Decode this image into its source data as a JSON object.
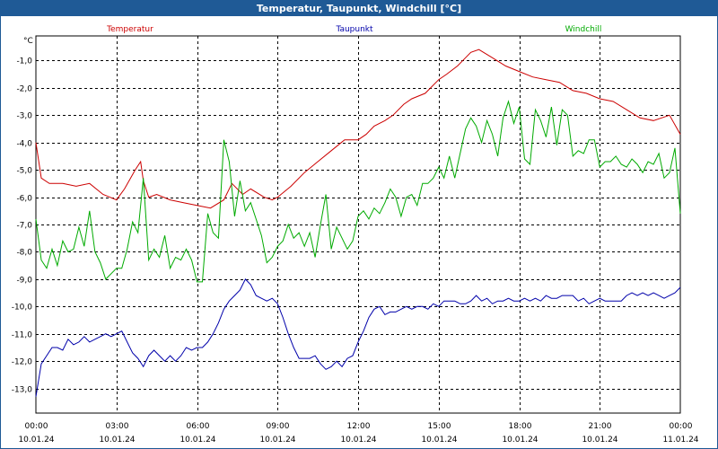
{
  "window": {
    "title": "Temperatur, Taupunkt, Windchill [°C]"
  },
  "chart_data": {
    "type": "line",
    "title": "Temperatur, Taupunkt, Windchill [°C]",
    "ylabel": "°C",
    "xlabel": "",
    "ylim": [
      -13.9,
      -0.1
    ],
    "xlim": [
      0,
      24
    ],
    "grid": true,
    "y_ticks": [
      "-1,0",
      "-2,0",
      "-3,0",
      "-4,0",
      "-5,0",
      "-6,0",
      "-7,0",
      "-8,0",
      "-9,0",
      "-10,0",
      "-11,0",
      "-12,0",
      "-13,0"
    ],
    "y_tick_values": [
      -1,
      -2,
      -3,
      -4,
      -5,
      -6,
      -7,
      -8,
      -9,
      -10,
      -11,
      -12,
      -13
    ],
    "x_ticks": [
      {
        "time": "00:00",
        "date": "10.01.24"
      },
      {
        "time": "03:00",
        "date": "10.01.24"
      },
      {
        "time": "06:00",
        "date": "10.01.24"
      },
      {
        "time": "09:00",
        "date": "10.01.24"
      },
      {
        "time": "12:00",
        "date": "10.01.24"
      },
      {
        "time": "15:00",
        "date": "10.01.24"
      },
      {
        "time": "18:00",
        "date": "10.01.24"
      },
      {
        "time": "21:00",
        "date": "10.01.24"
      },
      {
        "time": "00:00",
        "date": "11.01.24"
      }
    ],
    "x_tick_values": [
      0,
      3,
      6,
      9,
      12,
      15,
      18,
      21,
      24
    ],
    "series": [
      {
        "name": "Temperatur",
        "color": "#cc0000",
        "x": [
          0,
          0.2,
          0.5,
          1,
          1.5,
          2,
          2.5,
          3,
          3.3,
          3.7,
          3.9,
          4,
          4.2,
          4.5,
          5,
          5.5,
          6,
          6.5,
          7,
          7.3,
          7.7,
          8,
          8.5,
          8.8,
          9,
          9.5,
          10,
          10.5,
          11,
          11.5,
          11.8,
          12,
          12.3,
          12.6,
          13,
          13.3,
          13.7,
          14,
          14.5,
          15,
          15.3,
          15.7,
          16,
          16.2,
          16.5,
          17,
          17.5,
          18,
          18.5,
          19,
          19.5,
          20,
          20.5,
          21,
          21.5,
          22,
          22.5,
          23,
          23.3,
          23.6,
          24
        ],
        "values": [
          -4.0,
          -5.3,
          -5.5,
          -5.5,
          -5.6,
          -5.5,
          -5.9,
          -6.1,
          -5.7,
          -5.0,
          -4.7,
          -5.4,
          -6.0,
          -5.9,
          -6.1,
          -6.2,
          -6.3,
          -6.4,
          -6.1,
          -5.5,
          -5.9,
          -5.7,
          -6.0,
          -6.1,
          -6.0,
          -5.6,
          -5.1,
          -4.7,
          -4.3,
          -3.9,
          -3.9,
          -3.9,
          -3.7,
          -3.4,
          -3.2,
          -3.0,
          -2.6,
          -2.4,
          -2.2,
          -1.7,
          -1.5,
          -1.2,
          -0.9,
          -0.7,
          -0.6,
          -0.9,
          -1.2,
          -1.4,
          -1.6,
          -1.7,
          -1.8,
          -2.1,
          -2.2,
          -2.4,
          -2.5,
          -2.8,
          -3.1,
          -3.2,
          -3.1,
          -3.0,
          -3.7
        ]
      },
      {
        "name": "Taupunkt",
        "color": "#0000aa",
        "x": [
          0,
          0.2,
          0.4,
          0.6,
          0.8,
          1,
          1.2,
          1.4,
          1.6,
          1.8,
          2,
          2.2,
          2.4,
          2.6,
          2.8,
          3,
          3.2,
          3.4,
          3.6,
          3.8,
          4,
          4.2,
          4.4,
          4.6,
          4.8,
          5,
          5.2,
          5.4,
          5.6,
          5.8,
          6,
          6.2,
          6.4,
          6.6,
          6.8,
          7,
          7.2,
          7.4,
          7.6,
          7.8,
          8,
          8.2,
          8.4,
          8.6,
          8.8,
          9,
          9.2,
          9.4,
          9.6,
          9.8,
          10,
          10.2,
          10.4,
          10.6,
          10.8,
          11,
          11.2,
          11.4,
          11.6,
          11.8,
          12,
          12.2,
          12.4,
          12.6,
          12.8,
          13,
          13.2,
          13.4,
          13.6,
          13.8,
          14,
          14.2,
          14.4,
          14.6,
          14.8,
          15,
          15.2,
          15.4,
          15.6,
          15.8,
          16,
          16.2,
          16.4,
          16.6,
          16.8,
          17,
          17.2,
          17.4,
          17.6,
          17.8,
          18,
          18.2,
          18.4,
          18.6,
          18.8,
          19,
          19.2,
          19.4,
          19.6,
          19.8,
          20,
          20.2,
          20.4,
          20.6,
          20.8,
          21,
          21.2,
          21.4,
          21.6,
          21.8,
          22,
          22.2,
          22.4,
          22.6,
          22.8,
          23,
          23.2,
          23.4,
          23.6,
          23.8,
          24
        ],
        "values": [
          -13.3,
          -12.1,
          -11.8,
          -11.5,
          -11.5,
          -11.6,
          -11.2,
          -11.4,
          -11.3,
          -11.1,
          -11.3,
          -11.2,
          -11.1,
          -11.0,
          -11.1,
          -11.0,
          -10.9,
          -11.3,
          -11.7,
          -11.9,
          -12.2,
          -11.8,
          -11.6,
          -11.8,
          -12.0,
          -11.8,
          -12.0,
          -11.8,
          -11.5,
          -11.6,
          -11.5,
          -11.5,
          -11.3,
          -11.0,
          -10.6,
          -10.1,
          -9.8,
          -9.6,
          -9.4,
          -9.0,
          -9.2,
          -9.6,
          -9.7,
          -9.8,
          -9.7,
          -9.9,
          -10.4,
          -11.0,
          -11.5,
          -11.9,
          -11.9,
          -11.9,
          -11.8,
          -12.1,
          -12.3,
          -12.2,
          -12.0,
          -12.2,
          -11.9,
          -11.8,
          -11.3,
          -10.9,
          -10.4,
          -10.1,
          -10.0,
          -10.3,
          -10.2,
          -10.2,
          -10.1,
          -10.0,
          -10.1,
          -10.0,
          -10.0,
          -10.1,
          -9.9,
          -10.0,
          -9.8,
          -9.8,
          -9.8,
          -9.9,
          -9.9,
          -9.8,
          -9.6,
          -9.8,
          -9.7,
          -9.9,
          -9.8,
          -9.8,
          -9.7,
          -9.8,
          -9.8,
          -9.7,
          -9.8,
          -9.7,
          -9.8,
          -9.6,
          -9.7,
          -9.7,
          -9.6,
          -9.6,
          -9.6,
          -9.8,
          -9.7,
          -9.9,
          -9.8,
          -9.7,
          -9.8,
          -9.8,
          -9.8,
          -9.8,
          -9.6,
          -9.5,
          -9.6,
          -9.5,
          -9.6,
          -9.5,
          -9.6,
          -9.7,
          -9.6,
          -9.5,
          -9.3
        ]
      },
      {
        "name": "Windchill",
        "color": "#00aa00",
        "x": [
          0,
          0.2,
          0.4,
          0.6,
          0.8,
          1,
          1.2,
          1.4,
          1.6,
          1.8,
          2,
          2.2,
          2.4,
          2.6,
          2.8,
          3,
          3.2,
          3.4,
          3.6,
          3.8,
          4,
          4.2,
          4.4,
          4.6,
          4.8,
          5,
          5.2,
          5.4,
          5.6,
          5.8,
          6,
          6.2,
          6.4,
          6.6,
          6.8,
          7,
          7.2,
          7.4,
          7.6,
          7.8,
          8,
          8.2,
          8.4,
          8.6,
          8.8,
          9,
          9.2,
          9.4,
          9.6,
          9.8,
          10,
          10.2,
          10.4,
          10.6,
          10.8,
          11,
          11.2,
          11.4,
          11.6,
          11.8,
          12,
          12.2,
          12.4,
          12.6,
          12.8,
          13,
          13.2,
          13.4,
          13.6,
          13.8,
          14,
          14.2,
          14.4,
          14.6,
          14.8,
          15,
          15.2,
          15.4,
          15.6,
          15.8,
          16,
          16.2,
          16.4,
          16.6,
          16.8,
          17,
          17.2,
          17.4,
          17.6,
          17.8,
          18,
          18.2,
          18.4,
          18.6,
          18.8,
          19,
          19.2,
          19.4,
          19.6,
          19.8,
          20,
          20.2,
          20.4,
          20.6,
          20.8,
          21,
          21.2,
          21.4,
          21.6,
          21.8,
          22,
          22.2,
          22.4,
          22.6,
          22.8,
          23,
          23.2,
          23.4,
          23.6,
          23.8,
          24
        ],
        "values": [
          -6.8,
          -8.3,
          -8.6,
          -7.9,
          -8.5,
          -7.6,
          -8.0,
          -7.9,
          -7.1,
          -7.8,
          -6.5,
          -8.0,
          -8.4,
          -9.0,
          -8.8,
          -8.6,
          -8.6,
          -7.9,
          -6.9,
          -7.3,
          -5.3,
          -8.3,
          -7.9,
          -8.2,
          -7.4,
          -8.6,
          -8.2,
          -8.3,
          -7.9,
          -8.3,
          -9.1,
          -9.1,
          -6.6,
          -7.3,
          -7.5,
          -3.9,
          -4.7,
          -6.7,
          -5.4,
          -6.5,
          -6.2,
          -6.8,
          -7.4,
          -8.4,
          -8.2,
          -7.8,
          -7.6,
          -7.0,
          -7.5,
          -7.3,
          -7.8,
          -7.3,
          -8.2,
          -7.0,
          -5.9,
          -7.9,
          -7.1,
          -7.5,
          -7.9,
          -7.6,
          -6.7,
          -6.5,
          -6.8,
          -6.4,
          -6.6,
          -6.2,
          -5.7,
          -6.0,
          -6.7,
          -6.0,
          -5.9,
          -6.3,
          -5.5,
          -5.5,
          -5.3,
          -4.9,
          -5.3,
          -4.5,
          -5.3,
          -4.4,
          -3.5,
          -3.1,
          -3.4,
          -4.0,
          -3.2,
          -3.7,
          -4.5,
          -3.1,
          -2.5,
          -3.3,
          -2.7,
          -4.6,
          -4.8,
          -2.8,
          -3.2,
          -3.8,
          -2.7,
          -4.1,
          -2.8,
          -3.0,
          -4.5,
          -4.3,
          -4.4,
          -3.9,
          -3.9,
          -4.9,
          -4.7,
          -4.7,
          -4.5,
          -4.8,
          -4.9,
          -4.6,
          -4.8,
          -5.1,
          -4.7,
          -4.8,
          -4.4,
          -5.3,
          -5.1,
          -4.2,
          -6.6
        ]
      }
    ]
  }
}
